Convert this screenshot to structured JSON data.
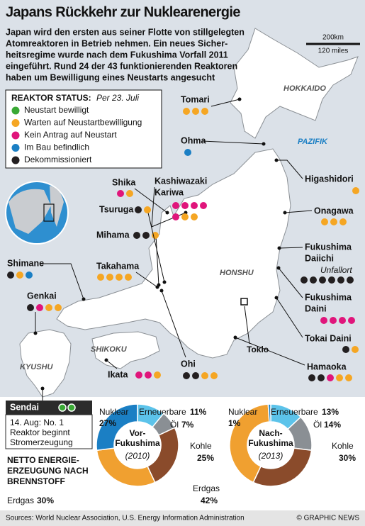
{
  "title": "Japans Rückkehr zur Nuklearenergie",
  "intro": [
    "Japan wird den ersten aus seiner Flotte von stillgelegten",
    "Atomreaktoren in Betrieb nehmen. Ein neues Sicher-",
    "heitsregime wurde nach dem Fukushima Vorfall 2011",
    "eingeführt. Rund 24 der 43 funktionierenden Reaktoren",
    "haben um Bewilligung eines Neustarts angesucht"
  ],
  "scale": {
    "km": "200km",
    "miles": "120 miles"
  },
  "legend": {
    "title": "REAKTOR STATUS:",
    "date": "Per 23. Juli",
    "items": [
      {
        "label": "Neustart bewilligt",
        "color": "#3aa935"
      },
      {
        "label": "Warten auf Neustartbewilligung",
        "color": "#f5a623"
      },
      {
        "label": "Kein Antrag auf Neustart",
        "color": "#e0157b"
      },
      {
        "label": "Im Bau befindlich",
        "color": "#1b7fc4"
      },
      {
        "label": "Dekommissioniert",
        "color": "#231f20"
      }
    ]
  },
  "regions": [
    "HOKKAIDO",
    "PAZIFIK",
    "HONSHU",
    "SHIKOKU",
    "KYUSHU"
  ],
  "city": "Toklo",
  "sites": [
    {
      "name": [
        "Tomari"
      ],
      "reactors": [
        1,
        1,
        1
      ]
    },
    {
      "name": [
        "Ohma"
      ],
      "reactors": [
        3
      ]
    },
    {
      "name": [
        "Higashidori"
      ],
      "reactors": [
        1
      ]
    },
    {
      "name": [
        "Onagawa"
      ],
      "reactors": [
        1,
        1,
        1
      ]
    },
    {
      "name": [
        "Fukushima",
        "Daiichi"
      ],
      "note": "Unfallort",
      "reactors": [
        4,
        4,
        4,
        4,
        4,
        4
      ]
    },
    {
      "name": [
        "Fukushima",
        "Daini"
      ],
      "reactors": [
        2,
        2,
        2,
        2
      ]
    },
    {
      "name": [
        "Tokai Daini"
      ],
      "reactors": [
        4,
        1
      ]
    },
    {
      "name": [
        "Hamaoka"
      ],
      "reactors": [
        4,
        4,
        2,
        1,
        1
      ]
    },
    {
      "name": [
        "Ohi"
      ],
      "reactors": [
        4,
        4,
        1,
        1
      ]
    },
    {
      "name": [
        "Ikata"
      ],
      "reactors": [
        2,
        2,
        1
      ]
    },
    {
      "name": [
        "Genkai"
      ],
      "reactors": [
        4,
        2,
        1,
        1
      ]
    },
    {
      "name": [
        "Shimane"
      ],
      "reactors": [
        4,
        1,
        3
      ]
    },
    {
      "name": [
        "Takahama"
      ],
      "reactors": [
        1,
        1,
        1,
        1
      ]
    },
    {
      "name": [
        "Mihama"
      ],
      "reactors": [
        4,
        4,
        1
      ]
    },
    {
      "name": [
        "Tsuruga"
      ],
      "reactors": [
        4,
        1
      ]
    },
    {
      "name": [
        "Shika"
      ],
      "reactors": [
        2,
        1
      ]
    },
    {
      "name": [
        "Kashiwazaki",
        "Kariwa"
      ],
      "reactors": [
        2,
        2,
        2,
        2,
        2,
        1,
        1
      ]
    },
    {
      "name": [
        "Sendai"
      ],
      "reactors": [
        0,
        0
      ]
    }
  ],
  "sendai_note": [
    "14. Aug: No. 1",
    "Reaktor beginnt",
    "Stromerzeugung"
  ],
  "energy_title": [
    "NETTO ENERGIE-",
    "ERZEUGUNG NACH",
    "BRENNSTOFF"
  ],
  "chart_data": [
    {
      "type": "pie",
      "title": [
        "Vor-",
        "Fukushima"
      ],
      "subtitle": "(2010)",
      "categories": [
        "Erneuerbare",
        "Öl",
        "Kohle",
        "Erdgas",
        "Nuklear"
      ],
      "colors": [
        "#5cc3ea",
        "#8a8f94",
        "#8a4b2b",
        "#f0a030",
        "#1b7fc4"
      ],
      "values": [
        11,
        7,
        25,
        30,
        27
      ],
      "value_labels": [
        "11%",
        "7%",
        "25%",
        "30%",
        "27%"
      ]
    },
    {
      "type": "pie",
      "title": [
        "Nach-",
        "Fukushima"
      ],
      "subtitle": "(2013)",
      "categories": [
        "Erneuerbare",
        "Öl",
        "Kohle",
        "Erdgas",
        "Nuklear"
      ],
      "colors": [
        "#5cc3ea",
        "#8a8f94",
        "#8a4b2b",
        "#f0a030",
        "#1b7fc4"
      ],
      "values": [
        13,
        14,
        30,
        42,
        1
      ],
      "value_labels": [
        "13%",
        "14%",
        "30%",
        "42%",
        "1%"
      ]
    }
  ],
  "sources": "Sources: World Nuclear Association, U.S. Energy Information Administration",
  "credit": "© GRAPHIC NEWS"
}
